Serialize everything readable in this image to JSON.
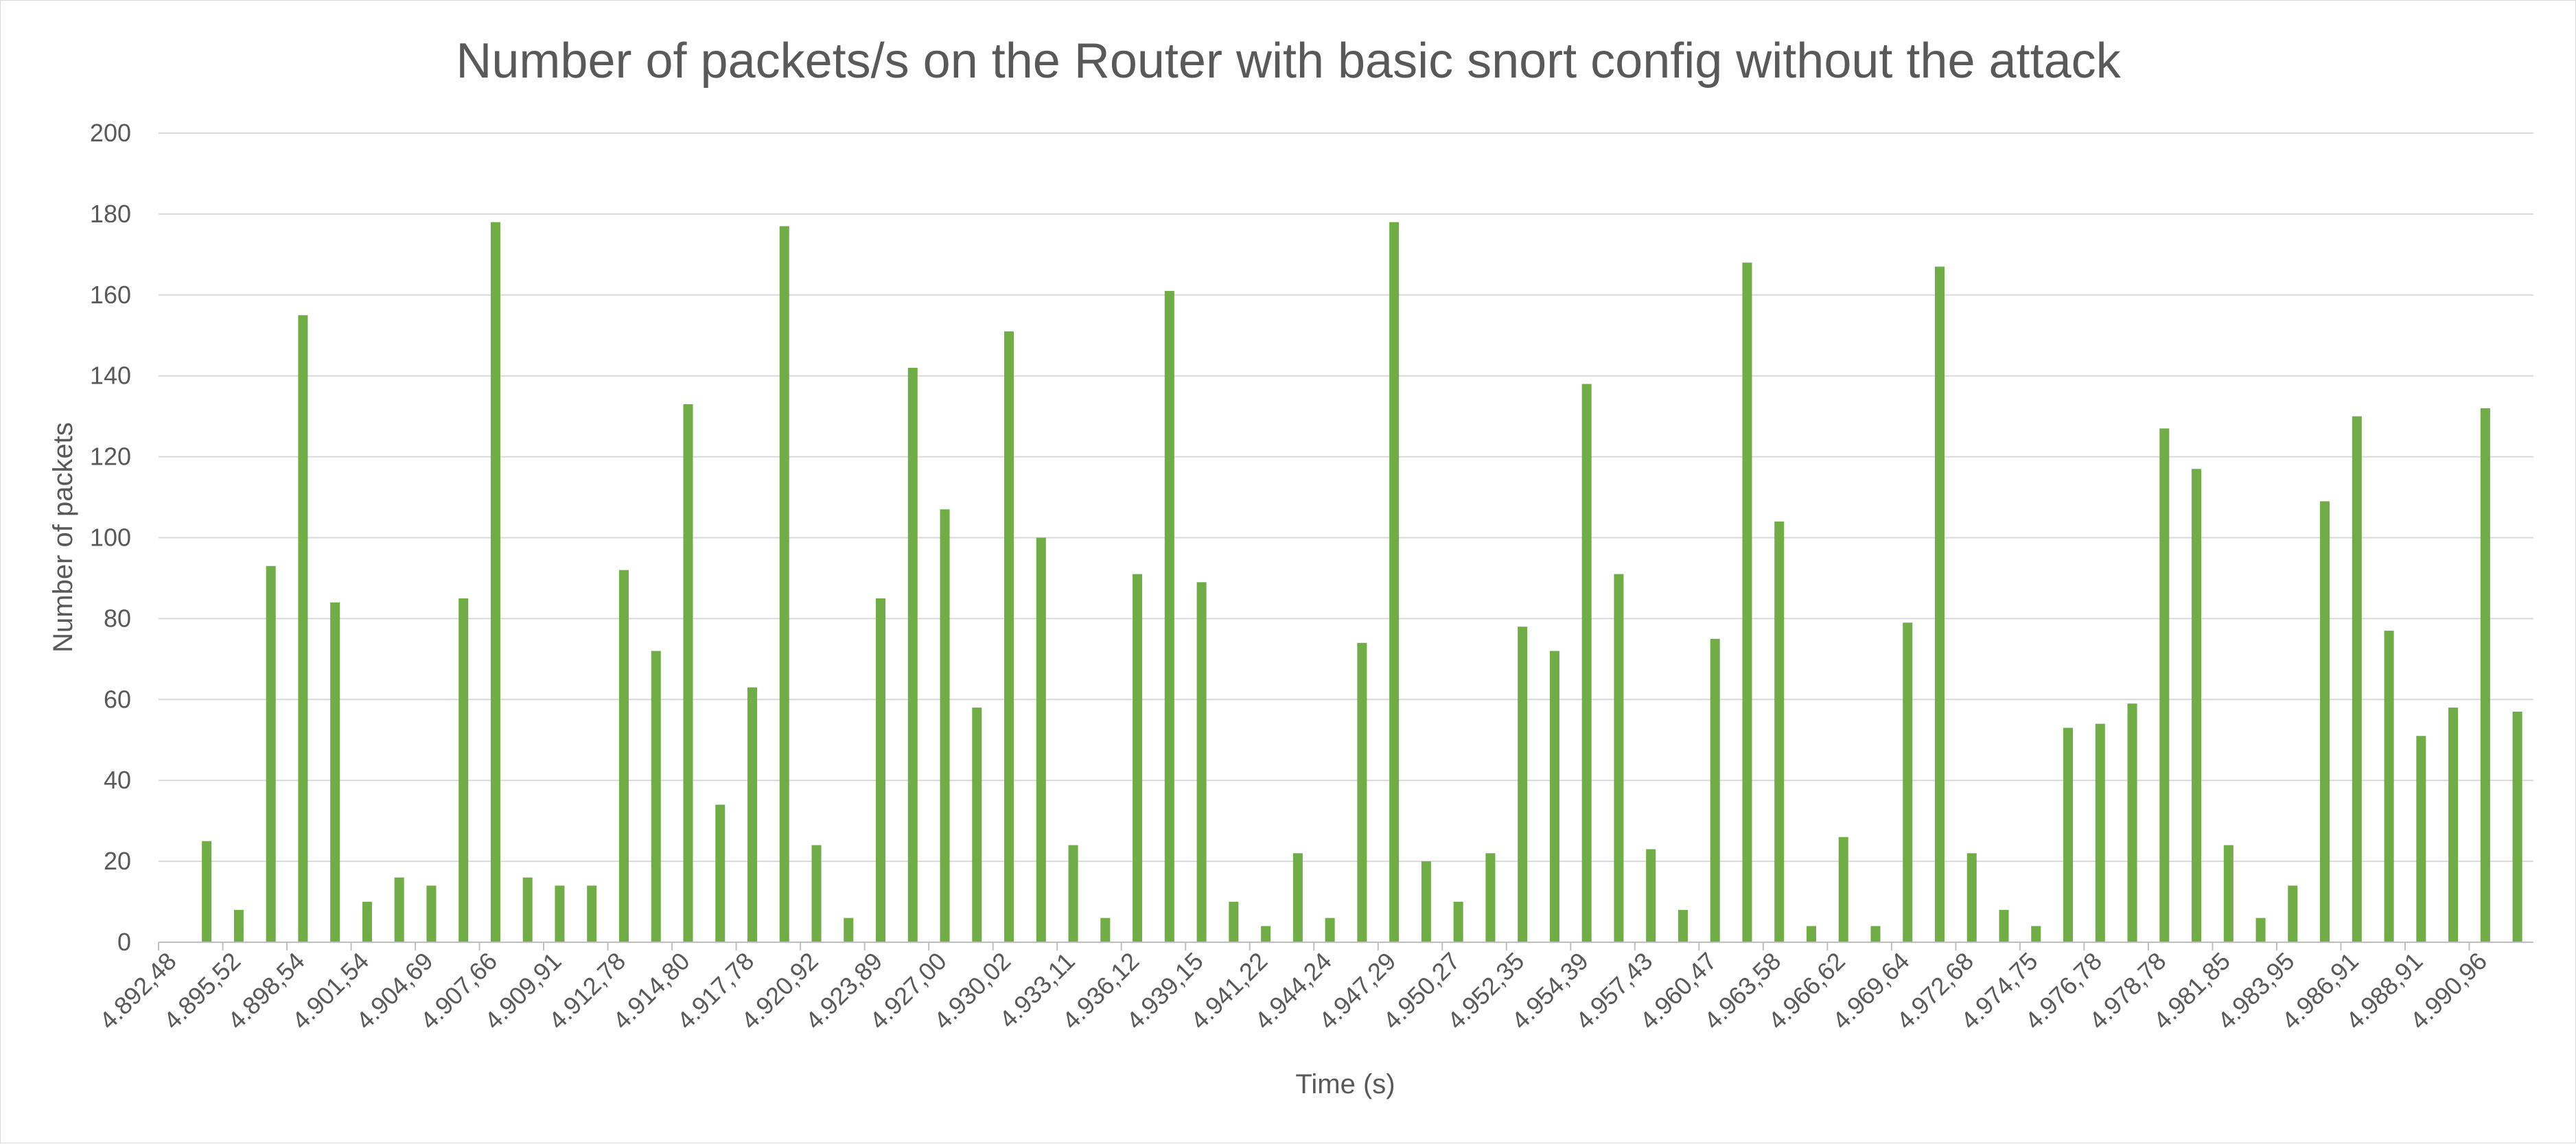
{
  "chart_data": {
    "type": "bar",
    "title": "Number of packets/s on the Router with basic snort config without the attack",
    "xlabel": "Time (s)",
    "ylabel": "Number of packets",
    "ylim": [
      0,
      200
    ],
    "y_ticks": [
      0,
      20,
      40,
      60,
      80,
      100,
      120,
      140,
      160,
      180,
      200
    ],
    "grid": true,
    "legend": "none",
    "bar_color": "#70ad47",
    "x_tick_labels": [
      "4.892,48",
      "4.895,52",
      "4.898,54",
      "4.901,54",
      "4.904,69",
      "4.907,66",
      "4.909,91",
      "4.912,78",
      "4.914,80",
      "4.917,78",
      "4.920,92",
      "4.923,89",
      "4.927,00",
      "4.930,02",
      "4.933,11",
      "4.936,12",
      "4.939,15",
      "4.941,22",
      "4.944,24",
      "4.947,29",
      "4.950,27",
      "4.952,35",
      "4.954,39",
      "4.957,43",
      "4.960,47",
      "4.963,58",
      "4.966,62",
      "4.969,64",
      "4.972,68",
      "4.974,75",
      "4.976,78",
      "4.978,78",
      "4.981,85",
      "4.983,95",
      "4.986,91",
      "4.988,91",
      "4.990,96"
    ],
    "values": [
      0,
      25,
      8,
      93,
      155,
      84,
      10,
      16,
      14,
      85,
      178,
      16,
      14,
      14,
      92,
      72,
      133,
      34,
      63,
      177,
      24,
      6,
      85,
      142,
      107,
      58,
      151,
      100,
      24,
      6,
      91,
      161,
      89,
      10,
      4,
      22,
      6,
      74,
      178,
      20,
      10,
      22,
      78,
      72,
      138,
      91,
      23,
      8,
      75,
      168,
      104,
      4,
      26,
      4,
      79,
      167,
      22,
      8,
      4,
      53,
      54,
      59,
      127,
      117,
      24,
      6,
      14,
      109,
      130,
      77,
      51,
      58,
      132,
      57
    ]
  }
}
